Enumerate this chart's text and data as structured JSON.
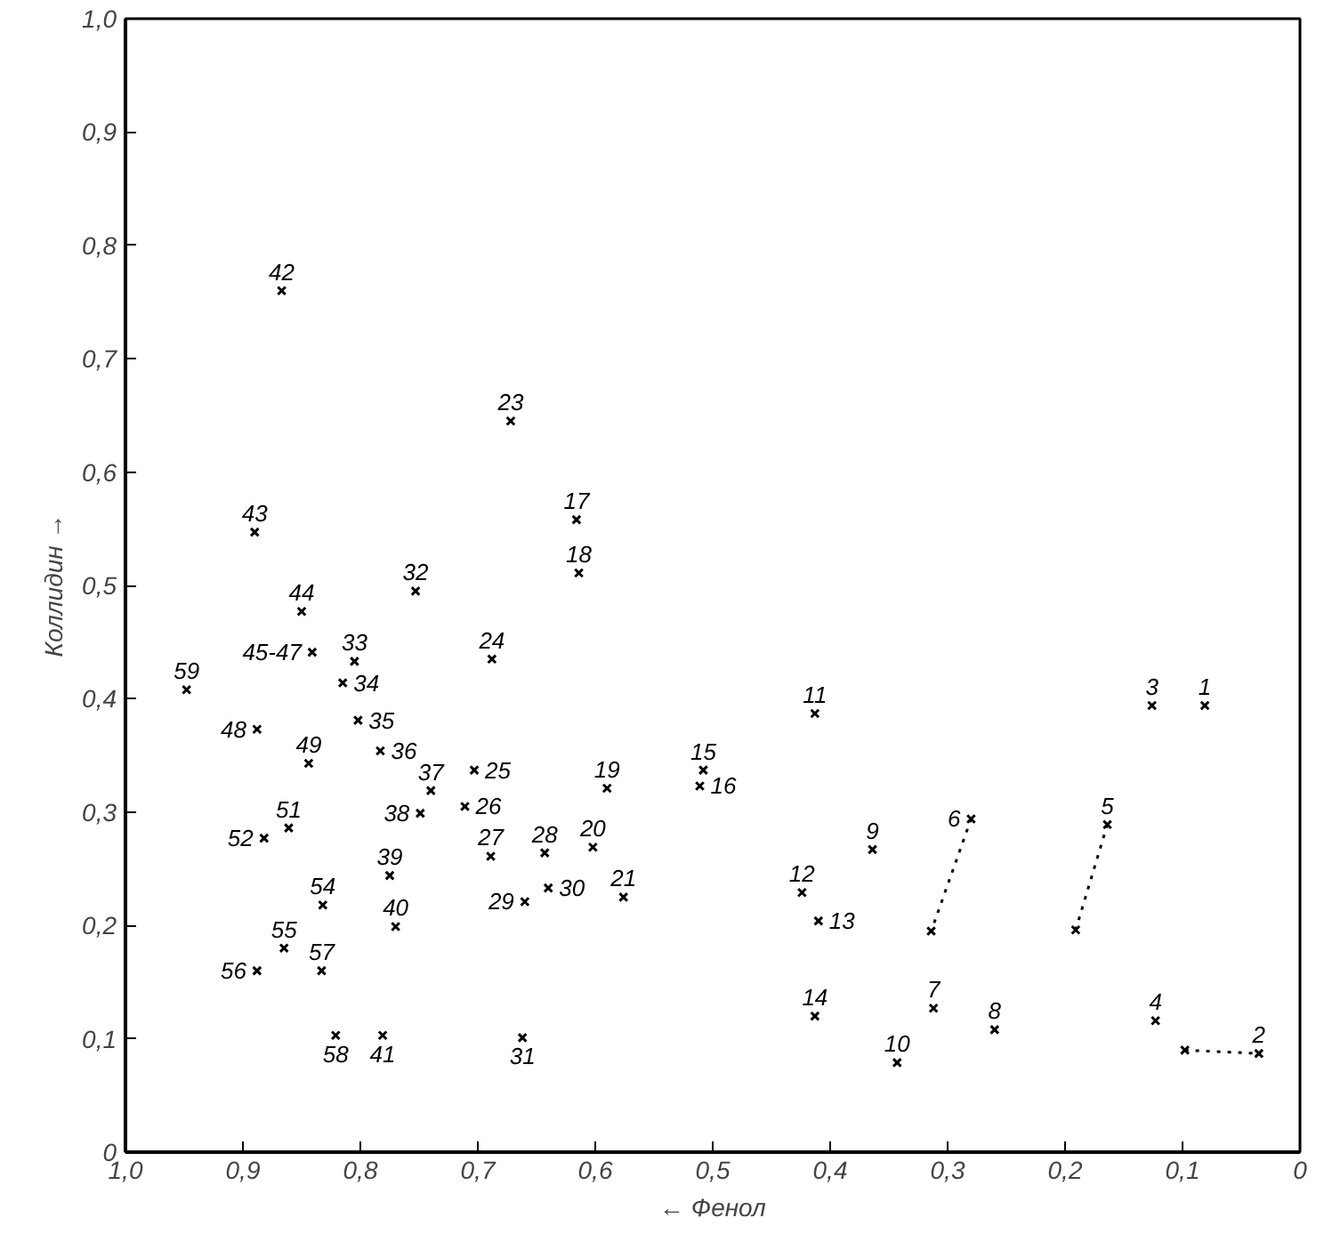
{
  "chart_data": {
    "type": "scatter",
    "xlabel": "← Фенол",
    "ylabel": "Коллидин →",
    "xlim": [
      1.0,
      0
    ],
    "ylim": [
      0,
      1.0
    ],
    "xticks": [
      {
        "value": 1.0,
        "label": "1,0"
      },
      {
        "value": 0.9,
        "label": "0,9"
      },
      {
        "value": 0.8,
        "label": "0,8"
      },
      {
        "value": 0.7,
        "label": "0,7"
      },
      {
        "value": 0.6,
        "label": "0,6"
      },
      {
        "value": 0.5,
        "label": "0,5"
      },
      {
        "value": 0.4,
        "label": "0,4"
      },
      {
        "value": 0.3,
        "label": "0,3"
      },
      {
        "value": 0.2,
        "label": "0,2"
      },
      {
        "value": 0.1,
        "label": "0,1"
      },
      0
    ],
    "yticks": [
      0,
      {
        "value": 0.1,
        "label": "0,1"
      },
      {
        "value": 0.2,
        "label": "0,2"
      },
      {
        "value": 0.3,
        "label": "0,3"
      },
      {
        "value": 0.4,
        "label": "0,4"
      },
      {
        "value": 0.5,
        "label": "0,5"
      },
      {
        "value": 0.6,
        "label": "0,6"
      },
      {
        "value": 0.7,
        "label": "0,7"
      },
      {
        "value": 0.8,
        "label": "0,8"
      },
      {
        "value": 0.9,
        "label": "0,9"
      },
      {
        "value": 1.0,
        "label": "1,0"
      }
    ],
    "grid": false,
    "marker": "cross",
    "series": [
      {
        "type": "scatter",
        "color": "#000000",
        "x": [
          0.081,
          0.126,
          0.123,
          0.413,
          0.364,
          0.424,
          0.41,
          0.413,
          0.508,
          0.511,
          0.616,
          0.614,
          0.59,
          0.602,
          0.576,
          0.672,
          0.688,
          0.703,
          0.711,
          0.689,
          0.643,
          0.66,
          0.64,
          0.662,
          0.753,
          0.805,
          0.815,
          0.802,
          0.783,
          0.74,
          0.749,
          0.775,
          0.77,
          0.781,
          0.867,
          0.89,
          0.85,
          0.841,
          0.888,
          0.844,
          0.861,
          0.882,
          0.832,
          0.865,
          0.888,
          0.833,
          0.821,
          0.948,
          0.312,
          0.26,
          0.343
        ],
        "values": [
          0.394,
          0.394,
          0.116,
          0.387,
          0.267,
          0.229,
          0.204,
          0.12,
          0.337,
          0.323,
          0.558,
          0.511,
          0.321,
          0.269,
          0.225,
          0.645,
          0.435,
          0.337,
          0.305,
          0.261,
          0.264,
          0.221,
          0.233,
          0.101,
          0.495,
          0.433,
          0.414,
          0.381,
          0.354,
          0.319,
          0.299,
          0.244,
          0.199,
          0.103,
          0.76,
          0.547,
          0.477,
          0.441,
          0.373,
          0.343,
          0.286,
          0.277,
          0.218,
          0.18,
          0.16,
          0.16,
          0.103,
          0.408,
          0.127,
          0.108,
          0.079
        ]
      },
      {
        "type": "line",
        "color": "#000000",
        "line_style": "dotted",
        "x": [
          0.098,
          0.035
        ],
        "values": [
          0.09,
          0.087
        ]
      },
      {
        "type": "line",
        "color": "#000000",
        "line_style": "dotted",
        "x": [
          0.164,
          0.191
        ],
        "values": [
          0.289,
          0.196
        ]
      },
      {
        "type": "line",
        "color": "#000000",
        "line_style": "dotted",
        "x": [
          0.28,
          0.314
        ],
        "values": [
          0.294,
          0.195
        ]
      }
    ],
    "annotations": [
      {
        "text": "1",
        "x": 0.081,
        "y": 0.394
      },
      {
        "text": "2",
        "x": 0.035,
        "y": 0.087
      },
      {
        "text": "3",
        "x": 0.126,
        "y": 0.394
      },
      {
        "text": "4",
        "x": 0.123,
        "y": 0.116
      },
      {
        "text": "5",
        "x": 0.164,
        "y": 0.289
      },
      {
        "text": "6",
        "x": 0.28,
        "y": 0.294
      },
      {
        "text": "7",
        "x": 0.312,
        "y": 0.127
      },
      {
        "text": "8",
        "x": 0.26,
        "y": 0.108
      },
      {
        "text": "9",
        "x": 0.364,
        "y": 0.267
      },
      {
        "text": "10",
        "x": 0.343,
        "y": 0.079
      },
      {
        "text": "11",
        "x": 0.413,
        "y": 0.387
      },
      {
        "text": "12",
        "x": 0.424,
        "y": 0.229
      },
      {
        "text": "13",
        "x": 0.41,
        "y": 0.204
      },
      {
        "text": "14",
        "x": 0.413,
        "y": 0.12
      },
      {
        "text": "15",
        "x": 0.508,
        "y": 0.337
      },
      {
        "text": "16",
        "x": 0.511,
        "y": 0.323
      },
      {
        "text": "17",
        "x": 0.616,
        "y": 0.558
      },
      {
        "text": "18",
        "x": 0.614,
        "y": 0.511
      },
      {
        "text": "19",
        "x": 0.59,
        "y": 0.321
      },
      {
        "text": "20",
        "x": 0.602,
        "y": 0.269
      },
      {
        "text": "21",
        "x": 0.576,
        "y": 0.225
      },
      {
        "text": "23",
        "x": 0.672,
        "y": 0.645
      },
      {
        "text": "24",
        "x": 0.688,
        "y": 0.435
      },
      {
        "text": "25",
        "x": 0.703,
        "y": 0.337
      },
      {
        "text": "26",
        "x": 0.711,
        "y": 0.305
      },
      {
        "text": "27",
        "x": 0.689,
        "y": 0.261
      },
      {
        "text": "28",
        "x": 0.643,
        "y": 0.264
      },
      {
        "text": "29",
        "x": 0.66,
        "y": 0.221
      },
      {
        "text": "30",
        "x": 0.64,
        "y": 0.233
      },
      {
        "text": "31",
        "x": 0.662,
        "y": 0.101
      },
      {
        "text": "32",
        "x": 0.753,
        "y": 0.495
      },
      {
        "text": "33",
        "x": 0.805,
        "y": 0.433
      },
      {
        "text": "34",
        "x": 0.815,
        "y": 0.414
      },
      {
        "text": "35",
        "x": 0.802,
        "y": 0.381
      },
      {
        "text": "36",
        "x": 0.783,
        "y": 0.354
      },
      {
        "text": "37",
        "x": 0.74,
        "y": 0.319
      },
      {
        "text": "38",
        "x": 0.749,
        "y": 0.299
      },
      {
        "text": "39",
        "x": 0.775,
        "y": 0.244
      },
      {
        "text": "40",
        "x": 0.77,
        "y": 0.199
      },
      {
        "text": "41",
        "x": 0.781,
        "y": 0.103
      },
      {
        "text": "42",
        "x": 0.867,
        "y": 0.76
      },
      {
        "text": "43",
        "x": 0.89,
        "y": 0.547
      },
      {
        "text": "44",
        "x": 0.85,
        "y": 0.477
      },
      {
        "text": "45-47",
        "x": 0.841,
        "y": 0.441
      },
      {
        "text": "48",
        "x": 0.888,
        "y": 0.373
      },
      {
        "text": "49",
        "x": 0.844,
        "y": 0.343
      },
      {
        "text": "51",
        "x": 0.861,
        "y": 0.286
      },
      {
        "text": "52",
        "x": 0.882,
        "y": 0.277
      },
      {
        "text": "54",
        "x": 0.832,
        "y": 0.218
      },
      {
        "text": "55",
        "x": 0.865,
        "y": 0.18
      },
      {
        "text": "56",
        "x": 0.888,
        "y": 0.16
      },
      {
        "text": "57",
        "x": 0.833,
        "y": 0.16
      },
      {
        "text": "58",
        "x": 0.821,
        "y": 0.103
      },
      {
        "text": "59",
        "x": 0.948,
        "y": 0.408
      }
    ]
  }
}
